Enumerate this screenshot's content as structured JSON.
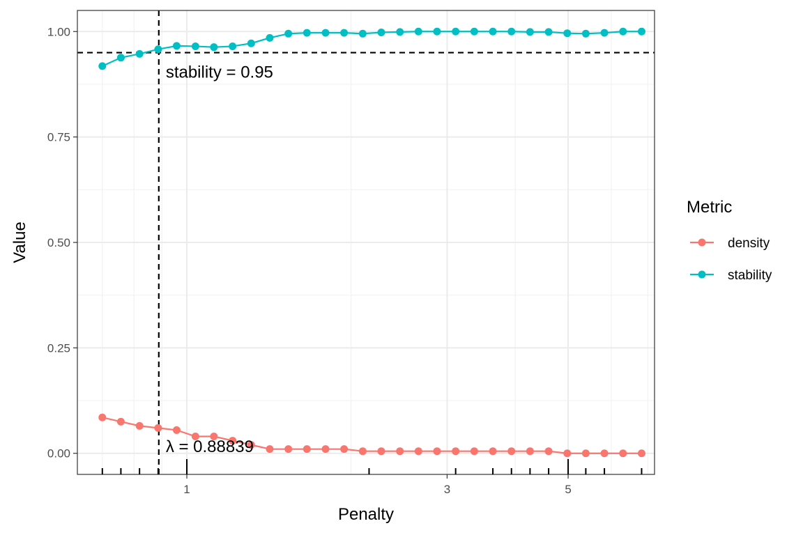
{
  "chart_data": {
    "type": "line",
    "xlabel": "Penalty",
    "ylabel": "Value",
    "x_scale": "log",
    "xlim": [
      0.63,
      7.2
    ],
    "ylim": [
      -0.05,
      1.05
    ],
    "x_ticks": [
      1,
      3,
      5
    ],
    "x_tick_labels": [
      "1",
      "3",
      "5"
    ],
    "y_ticks": [
      0,
      0.25,
      0.5,
      0.75,
      1.0
    ],
    "y_tick_labels": [
      "0.00",
      "0.25",
      "0.50",
      "0.75",
      "1.00"
    ],
    "grid": true,
    "legend": {
      "title": "Metric",
      "position": "right"
    },
    "x": [
      0.7,
      0.757,
      0.819,
      0.886,
      0.958,
      1.037,
      1.121,
      1.213,
      1.312,
      1.419,
      1.535,
      1.66,
      1.796,
      1.942,
      2.101,
      2.272,
      2.458,
      2.658,
      2.875,
      3.11,
      3.364,
      3.639,
      3.936,
      4.257,
      4.605,
      4.981,
      5.387,
      5.827,
      6.303,
      6.818
    ],
    "series": [
      {
        "name": "density",
        "color": "#F8766D",
        "values": [
          0.085,
          0.075,
          0.065,
          0.06,
          0.055,
          0.04,
          0.04,
          0.03,
          0.02,
          0.01,
          0.01,
          0.01,
          0.01,
          0.01,
          0.005,
          0.005,
          0.005,
          0.005,
          0.005,
          0.005,
          0.005,
          0.005,
          0.005,
          0.005,
          0.005,
          0.0,
          0.0,
          0.0,
          0.0,
          0.0
        ]
      },
      {
        "name": "stability",
        "color": "#00BFC4",
        "values": [
          0.918,
          0.938,
          0.947,
          0.958,
          0.966,
          0.965,
          0.963,
          0.965,
          0.972,
          0.985,
          0.995,
          0.997,
          0.997,
          0.997,
          0.995,
          0.998,
          0.999,
          1.0,
          1.0,
          1.0,
          1.0,
          1.0,
          1.0,
          0.999,
          0.999,
          0.996,
          0.995,
          0.997,
          1.0,
          1.0
        ]
      }
    ],
    "reference_lines": {
      "h_value": 0.95,
      "h_label": "stability = 0.95",
      "v_value": 0.88839,
      "v_label": "λ = 0.88839"
    },
    "rug_x": [
      0.7,
      0.757,
      0.819,
      0.886,
      1.0,
      2.158,
      3.11,
      3.639,
      3.936,
      4.257,
      4.605,
      5.0,
      5.387,
      5.827,
      6.818
    ]
  }
}
